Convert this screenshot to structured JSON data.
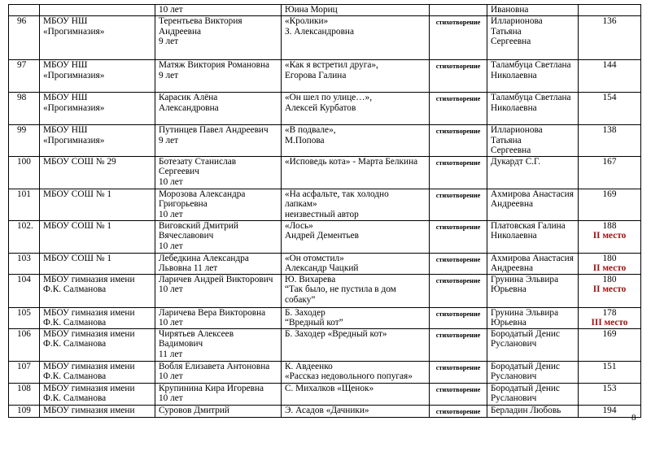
{
  "table": {
    "rows": [
      {
        "name": [
          "10 лет"
        ],
        "work": [
          "Юина Мориц"
        ],
        "teacher": [
          "Ивановна"
        ]
      },
      {
        "num": "96",
        "school": [
          "МБОУ НШ",
          "«Прогимназия»"
        ],
        "name": [
          "Терентьева Виктория",
          "Андреевна",
          "9 лет"
        ],
        "work": [
          "«Кролики»",
          "З. Александровна"
        ],
        "type": "стихотворение",
        "teacher": [
          "Илларионова Татьяна",
          "Сергеевна"
        ],
        "score": "136"
      },
      {
        "num": "97",
        "school": [
          "МБОУ НШ",
          "«Прогимназия»"
        ],
        "name": [
          "Матяж Виктория Романовна",
          "9 лет"
        ],
        "work": [
          "«Как я встретил друга»,",
          "Егорова Галина"
        ],
        "type": "стихотворение",
        "teacher": [
          "Таламбуца Светлана",
          "Николаевна"
        ],
        "score": "144"
      },
      {
        "num": "98",
        "school": [
          "МБОУ НШ",
          "«Прогимназия»"
        ],
        "name": [
          "Карасик Алёна",
          "Александровна"
        ],
        "work": [
          "«Он шел по улице…»,",
          "Алексей Курбатов"
        ],
        "type": "стихотворение",
        "teacher": [
          "Таламбуца Светлана",
          "Николаевна"
        ],
        "score": "154"
      },
      {
        "num": "99",
        "school": [
          "МБОУ НШ",
          "«Прогимназия»"
        ],
        "name": [
          "Путинцев Павел Андреевич",
          "9 лет"
        ],
        "work": [
          "«В подвале»,",
          "М.Попова"
        ],
        "type": "стихотворение",
        "teacher": [
          "Илларионова Татьяна",
          "Сергеевна"
        ],
        "score": "138"
      },
      {
        "num": "100",
        "school": [
          "МБОУ СОШ № 29"
        ],
        "name": [
          "Ботезату Станислав",
          "Сергеевич",
          "10 лет"
        ],
        "work": [
          "«Исповедь кота» - Марта Белкина"
        ],
        "type": "стихотворение",
        "teacher": [
          "Дукардт С.Г."
        ],
        "score": "167"
      },
      {
        "num": "101",
        "school": [
          "МБОУ СОШ № 1"
        ],
        "name": [
          "Морозова Александра",
          "Григорьевна",
          "10 лет"
        ],
        "work": [
          "«На асфальте, так холодно",
          "лапкам»",
          "неизвестный автор"
        ],
        "type": "стихотворение",
        "teacher": [
          "Ахмирова Анастасия",
          "Андреевна"
        ],
        "score": "169"
      },
      {
        "num": "102.",
        "school": [
          "МБОУ СОШ № 1"
        ],
        "name": [
          "Виговский Дмитрий",
          "Вячеславович",
          "10 лет"
        ],
        "work": [
          "«Лось»",
          "Андрей Дементьев"
        ],
        "type": "стихотворение",
        "teacher": [
          "Платовская Галина",
          "Николаевна"
        ],
        "score": "188",
        "place": "II место"
      },
      {
        "num": "103",
        "school": [
          "МБОУ СОШ № 1"
        ],
        "name": [
          "Лебедкина Александра",
          "Львовна 11 лет"
        ],
        "work": [
          "«Он отомстил»",
          "Александр Чацкий"
        ],
        "type": "стихотворение",
        "teacher": [
          "Ахмирова Анастасия",
          "Андреевна"
        ],
        "score": "180",
        "place": "II место"
      },
      {
        "num": "104",
        "school": [
          "МБОУ гимназия имени",
          "Ф.К. Салманова"
        ],
        "name": [
          "Ларичев Андрей Викторович",
          "10 лет"
        ],
        "work": [
          "Ю. Вихарева",
          "“Так было, не пустила в дом",
          "собаку”"
        ],
        "type": "стихотворение",
        "teacher": [
          "Грунина Эльвира",
          "Юрьевна"
        ],
        "score": "180",
        "place": "II место"
      },
      {
        "num": "105",
        "school": [
          "МБОУ гимназия имени",
          "Ф.К. Салманова"
        ],
        "name": [
          "Ларичева Вера Викторовна",
          "10 лет"
        ],
        "work": [
          "Б. Заходер",
          "“Вредный кот”"
        ],
        "type": "стихотворение",
        "teacher": [
          "Грунина Эльвира",
          "Юрьевна"
        ],
        "score": "178",
        "place": "III место"
      },
      {
        "num": "106",
        "school": [
          "МБОУ гимназия имени",
          "Ф.К. Салманова"
        ],
        "name": [
          "Чирятьев Алексеев",
          "Вадимович",
          "11 лет"
        ],
        "work": [
          "Б. Заходер «Вредный кот»"
        ],
        "type": "стихотворение",
        "teacher": [
          "Бородатый Денис",
          "Русланович"
        ],
        "score": "169"
      },
      {
        "num": "107",
        "school": [
          "МБОУ гимназия имени",
          "Ф.К. Салманова"
        ],
        "name": [
          "Вобля Елизавета Антоновна",
          "10 лет"
        ],
        "work": [
          "К. Авдеенко",
          "«Рассказ недовольного попугая»"
        ],
        "type": "стихотворение",
        "teacher": [
          "Бородатый Денис",
          "Русланович"
        ],
        "score": "151"
      },
      {
        "num": "108",
        "school": [
          "МБОУ гимназия имени",
          "Ф.К. Салманова"
        ],
        "name": [
          "Крупинина Кира Игоревна",
          "10 лет"
        ],
        "work": [
          "С. Михалков «Щенок»"
        ],
        "type": "стихотворение",
        "teacher": [
          "Бородатый Денис",
          "Русланович"
        ],
        "score": "153"
      },
      {
        "num": "109",
        "school": [
          "МБОУ гимназия имени"
        ],
        "name": [
          "Суровов Дмитрий"
        ],
        "work": [
          "Э. Асадов «Дачники»"
        ],
        "type": "стихотворение",
        "teacher": [
          "Берладин Любовь"
        ],
        "score": "194"
      }
    ]
  },
  "page_number": "8"
}
